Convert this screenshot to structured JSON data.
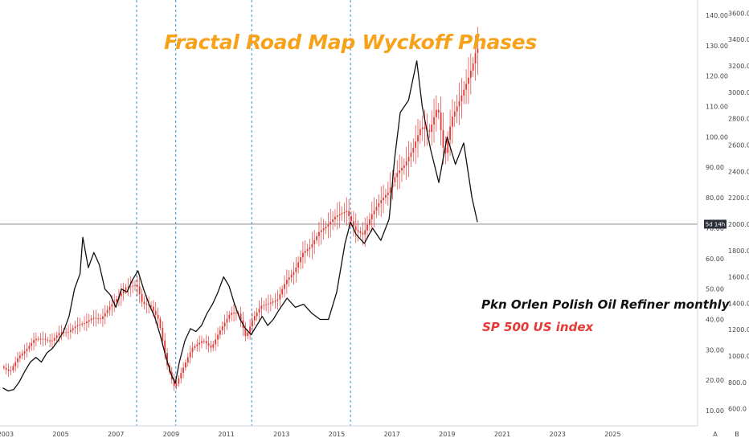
{
  "chart_data": {
    "type": "line",
    "title": "Fractal Road Map Wyckoff Phases",
    "legend": [
      "Pkn Orlen Polish Oil  Refiner monthly",
      "SP 500 US index"
    ],
    "x_ticks": [
      "2003",
      "2005",
      "2007",
      "2009",
      "2011",
      "2013",
      "2015",
      "2017",
      "2019",
      "2021",
      "2023",
      "2025"
    ],
    "y_left_ticks": [
      "10.00",
      "20.00",
      "30.00",
      "40.00",
      "50.00",
      "60.00",
      "70.00",
      "80.00",
      "90.00",
      "100.00",
      "110.00",
      "120.00",
      "130.00",
      "140.00"
    ],
    "y_right_ticks": [
      "600.0",
      "800.0",
      "1000.0",
      "1200.0",
      "1400.0",
      "1600.0",
      "1800.0",
      "2000.0",
      "2200.0",
      "2400.0",
      "2600.0",
      "2800.0",
      "3000.0",
      "3200.0",
      "3400.0",
      "3600.0"
    ],
    "ylim_left": [
      5,
      145
    ],
    "ylim_right": [
      470,
      3700
    ],
    "xlim": [
      2002.8,
      2027.9
    ],
    "price_label": "5d 14h",
    "price_line_value": 2000,
    "vertical_lines": [
      2007.75,
      2009.17,
      2011.92,
      2015.5
    ],
    "scale_buttons": [
      "A",
      "B"
    ],
    "colors": {
      "pkn": "#111111",
      "sp500": "#e53935",
      "title": "#f7a21b",
      "vlines": "#2b8fd8"
    },
    "series": [
      {
        "name": "Pkn Orlen Polish Oil  Refiner monthly",
        "axis": "left",
        "points": [
          [
            2002.9,
            17.5
          ],
          [
            2003.1,
            16.5
          ],
          [
            2003.3,
            17
          ],
          [
            2003.5,
            19.5
          ],
          [
            2003.7,
            23
          ],
          [
            2003.9,
            26
          ],
          [
            2004.1,
            27.5
          ],
          [
            2004.3,
            26
          ],
          [
            2004.5,
            29
          ],
          [
            2004.7,
            30.5
          ],
          [
            2004.9,
            33
          ],
          [
            2005.1,
            36
          ],
          [
            2005.3,
            41
          ],
          [
            2005.5,
            50
          ],
          [
            2005.7,
            55
          ],
          [
            2005.8,
            67
          ],
          [
            2006.0,
            57
          ],
          [
            2006.2,
            62
          ],
          [
            2006.4,
            58
          ],
          [
            2006.6,
            50
          ],
          [
            2006.8,
            48
          ],
          [
            2007.0,
            44
          ],
          [
            2007.2,
            50
          ],
          [
            2007.4,
            49
          ],
          [
            2007.6,
            53
          ],
          [
            2007.8,
            56
          ],
          [
            2008.0,
            50
          ],
          [
            2008.2,
            45
          ],
          [
            2008.4,
            41
          ],
          [
            2008.6,
            35
          ],
          [
            2008.8,
            28
          ],
          [
            2009.0,
            22
          ],
          [
            2009.15,
            19
          ],
          [
            2009.3,
            26
          ],
          [
            2009.5,
            33
          ],
          [
            2009.7,
            37
          ],
          [
            2009.9,
            36
          ],
          [
            2010.1,
            38
          ],
          [
            2010.3,
            42
          ],
          [
            2010.5,
            45
          ],
          [
            2010.7,
            49
          ],
          [
            2010.9,
            54
          ],
          [
            2011.1,
            51
          ],
          [
            2011.3,
            45
          ],
          [
            2011.5,
            40
          ],
          [
            2011.7,
            37
          ],
          [
            2011.9,
            35
          ],
          [
            2012.1,
            38
          ],
          [
            2012.3,
            41
          ],
          [
            2012.5,
            38
          ],
          [
            2012.7,
            40
          ],
          [
            2012.9,
            43
          ],
          [
            2013.2,
            47
          ],
          [
            2013.5,
            44
          ],
          [
            2013.8,
            45
          ],
          [
            2014.1,
            42
          ],
          [
            2014.4,
            40
          ],
          [
            2014.7,
            40
          ],
          [
            2015.0,
            49
          ],
          [
            2015.3,
            65
          ],
          [
            2015.5,
            72
          ],
          [
            2015.7,
            68
          ],
          [
            2016.0,
            65
          ],
          [
            2016.3,
            70
          ],
          [
            2016.6,
            66
          ],
          [
            2016.9,
            73
          ],
          [
            2017.1,
            93
          ],
          [
            2017.3,
            108
          ],
          [
            2017.6,
            112
          ],
          [
            2017.9,
            125
          ],
          [
            2018.1,
            110
          ],
          [
            2018.4,
            96
          ],
          [
            2018.7,
            85
          ],
          [
            2019.0,
            100
          ],
          [
            2019.3,
            91
          ],
          [
            2019.6,
            98
          ],
          [
            2019.9,
            80
          ],
          [
            2020.1,
            72
          ]
        ]
      },
      {
        "name": "SP 500 US index",
        "axis": "right",
        "points": [
          [
            2002.9,
            920
          ],
          [
            2003.2,
            880
          ],
          [
            2003.5,
            990
          ],
          [
            2003.8,
            1050
          ],
          [
            2004.1,
            1130
          ],
          [
            2004.4,
            1130
          ],
          [
            2004.7,
            1110
          ],
          [
            2005.0,
            1180
          ],
          [
            2005.3,
            1180
          ],
          [
            2005.6,
            1230
          ],
          [
            2005.9,
            1250
          ],
          [
            2006.2,
            1290
          ],
          [
            2006.5,
            1280
          ],
          [
            2006.8,
            1370
          ],
          [
            2007.1,
            1440
          ],
          [
            2007.4,
            1520
          ],
          [
            2007.8,
            1540
          ],
          [
            2008.0,
            1400
          ],
          [
            2008.3,
            1380
          ],
          [
            2008.6,
            1270
          ],
          [
            2008.9,
            930
          ],
          [
            2009.17,
            760
          ],
          [
            2009.5,
            920
          ],
          [
            2009.8,
            1060
          ],
          [
            2010.2,
            1120
          ],
          [
            2010.5,
            1060
          ],
          [
            2010.8,
            1190
          ],
          [
            2011.2,
            1330
          ],
          [
            2011.5,
            1320
          ],
          [
            2011.75,
            1140
          ],
          [
            2012.0,
            1280
          ],
          [
            2012.3,
            1380
          ],
          [
            2012.6,
            1400
          ],
          [
            2012.9,
            1430
          ],
          [
            2013.2,
            1570
          ],
          [
            2013.5,
            1640
          ],
          [
            2013.8,
            1780
          ],
          [
            2014.1,
            1830
          ],
          [
            2014.4,
            1940
          ],
          [
            2014.7,
            1990
          ],
          [
            2015.0,
            2060
          ],
          [
            2015.4,
            2100
          ],
          [
            2015.7,
            1960
          ],
          [
            2016.0,
            1920
          ],
          [
            2016.3,
            2070
          ],
          [
            2016.6,
            2170
          ],
          [
            2016.9,
            2240
          ],
          [
            2017.2,
            2380
          ],
          [
            2017.5,
            2450
          ],
          [
            2017.8,
            2570
          ],
          [
            2018.1,
            2740
          ],
          [
            2018.4,
            2700
          ],
          [
            2018.7,
            2900
          ],
          [
            2018.95,
            2500
          ],
          [
            2019.2,
            2800
          ],
          [
            2019.5,
            2940
          ],
          [
            2019.8,
            3100
          ],
          [
            2020.0,
            3230
          ],
          [
            2020.1,
            3330
          ]
        ]
      }
    ]
  }
}
